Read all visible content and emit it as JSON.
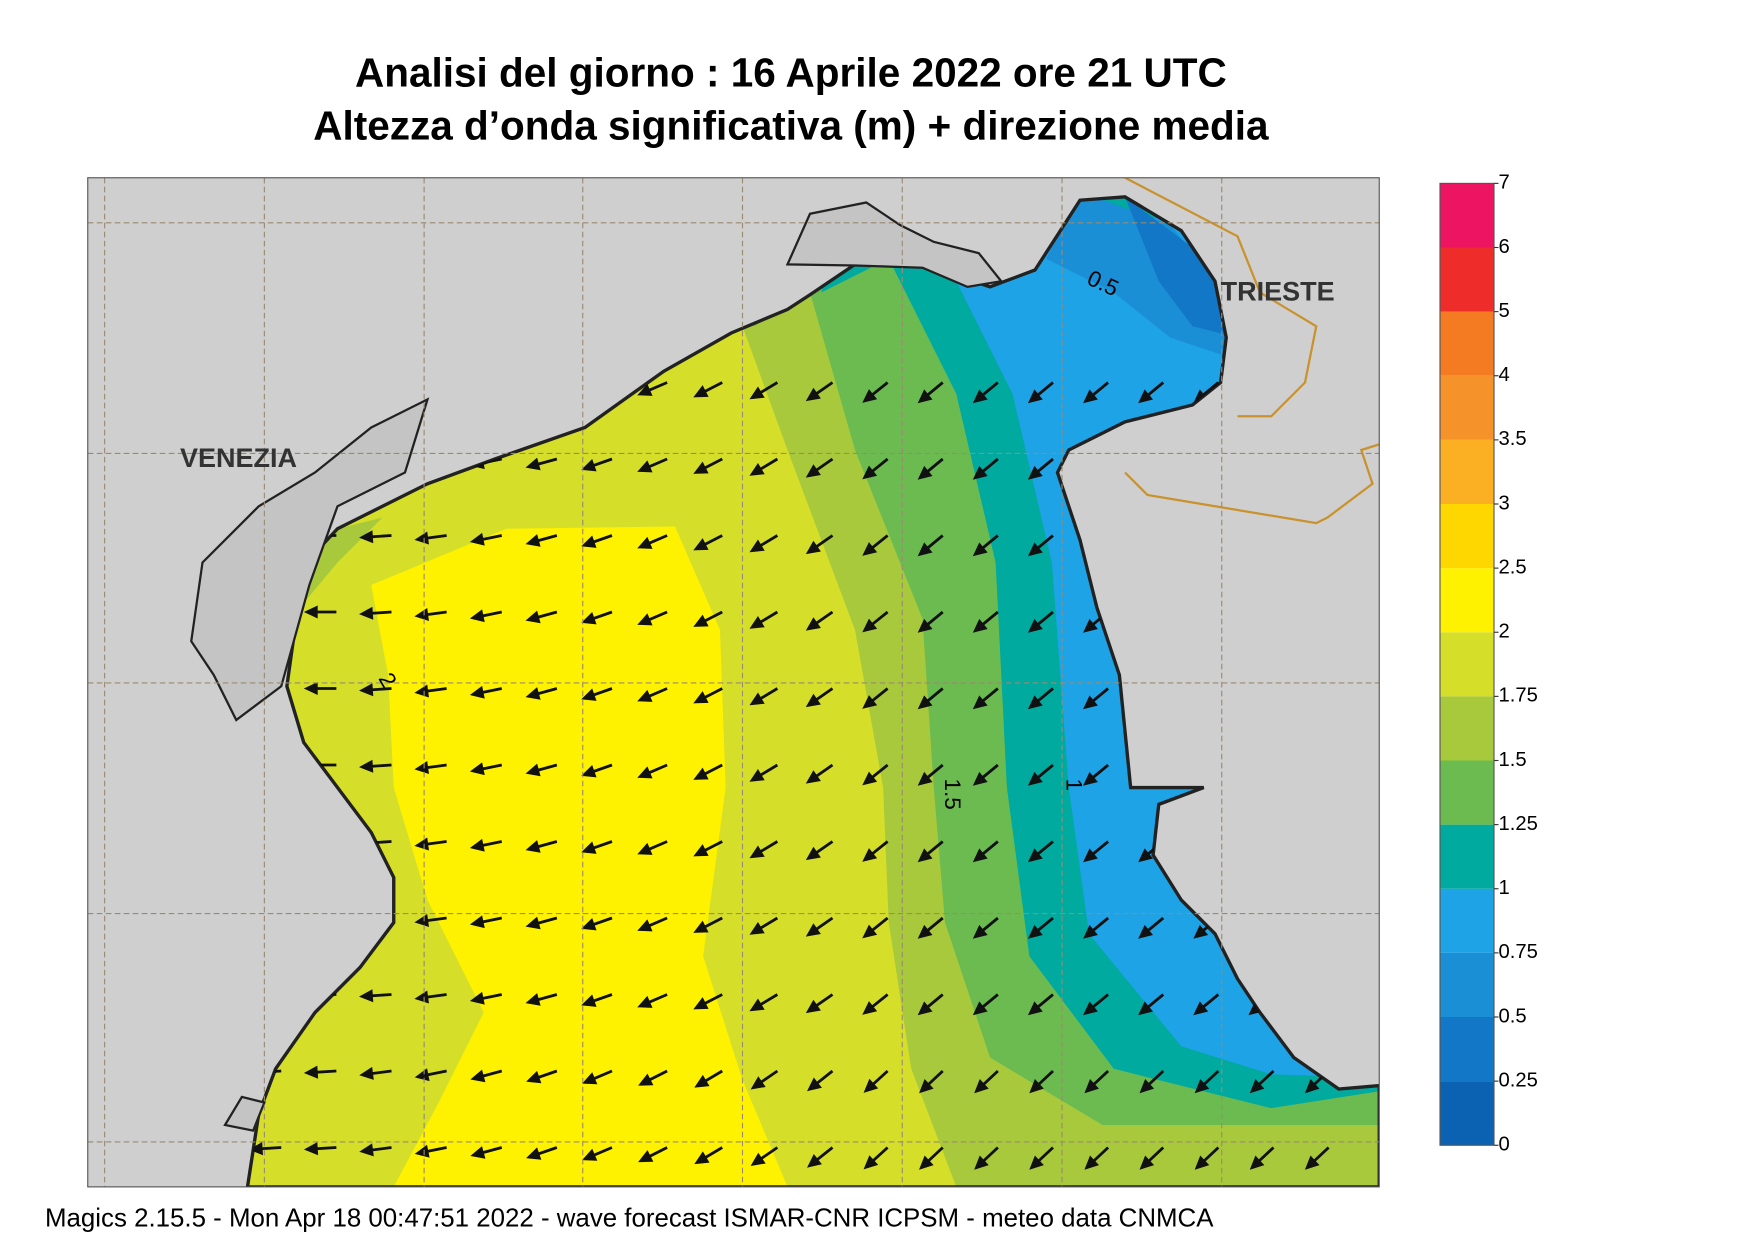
{
  "header": {
    "title": "Analisi del giorno :  16   Aprile  2022   ore 21 UTC",
    "subtitle": "Altezza d’onda significativa (m) + direzione media"
  },
  "places": [
    {
      "label": "VENEZIA"
    },
    {
      "label": "TRIESTE"
    }
  ],
  "contour_labels": [
    {
      "label": "0.5"
    },
    {
      "label": "1"
    },
    {
      "label": "1.5"
    },
    {
      "label": "2"
    }
  ],
  "legend": {
    "ticks": [
      0,
      0.25,
      0.5,
      0.75,
      1,
      1.25,
      1.5,
      1.75,
      2,
      2.5,
      3,
      3.5,
      4,
      5,
      6,
      7
    ],
    "colors": [
      "#0b62b2",
      "#1177c6",
      "#1a8fd6",
      "#1ea3e6",
      "#00aa9e",
      "#6cbb50",
      "#a8c93c",
      "#d5df2a",
      "#fff200",
      "#ffd700",
      "#fbb023",
      "#f6922a",
      "#f47b22",
      "#ee2d2a",
      "#ed1462"
    ]
  },
  "footer": "Magics 2.15.5 - Mon Apr 18 00:47:51 2022 - wave forecast  ISMAR-CNR  ICPSM - meteo data   CNMCA"
}
